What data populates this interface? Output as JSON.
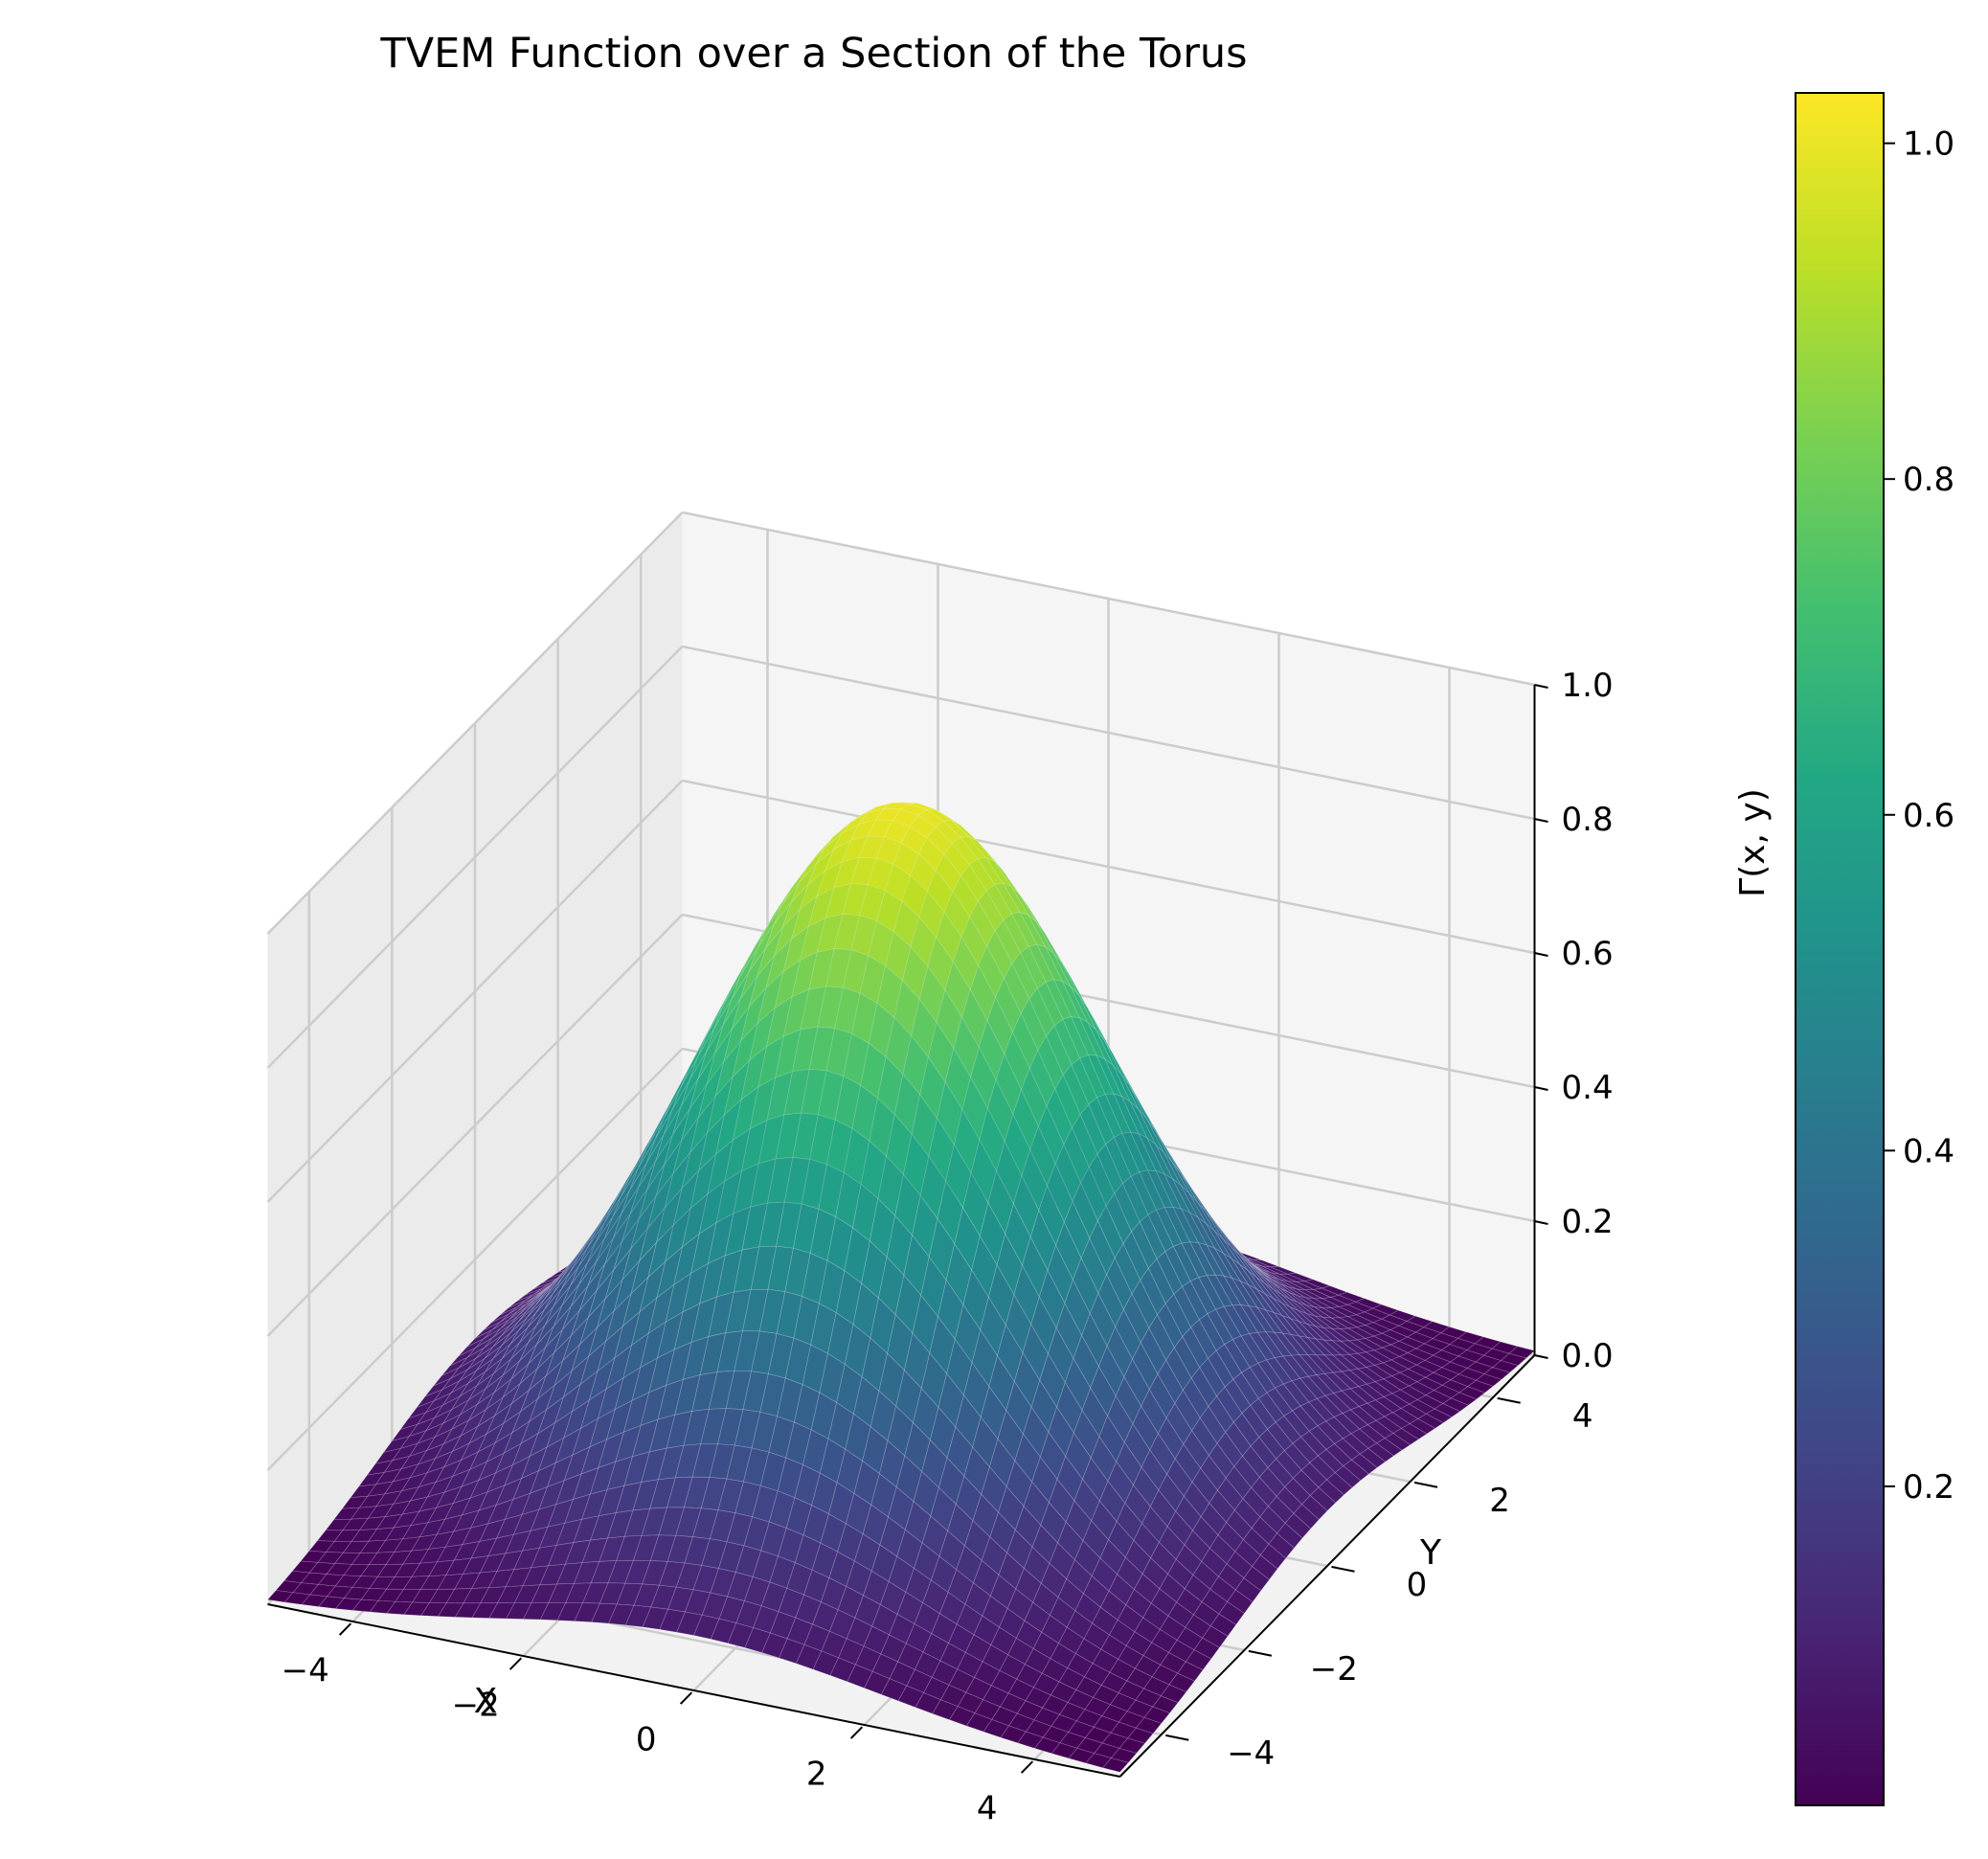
{
  "chart_data": {
    "type": "surface3d",
    "title": "TVEM Function over a Section of the Torus",
    "xlabel": "X",
    "ylabel": "Y",
    "zlabel": "Γ(x, y)",
    "xlim": [
      -5,
      5
    ],
    "ylim": [
      -5,
      5
    ],
    "zlim": [
      0,
      1
    ],
    "x_ticks": [
      "−4",
      "−2",
      "0",
      "2",
      "4"
    ],
    "y_ticks": [
      "−4",
      "−2",
      "0",
      "2",
      "4"
    ],
    "z_ticks": [
      "0.0",
      "0.2",
      "0.4",
      "0.6",
      "0.8",
      "1.0"
    ],
    "colorbar": {
      "colormap": "viridis",
      "range": [
        0.01,
        1.03
      ],
      "ticks": [
        "0.2",
        "0.4",
        "0.6",
        "0.8",
        "1.0"
      ]
    },
    "surface": {
      "function": "exp(-(x^2 + y^2)/10)",
      "x_range": [
        -5,
        5
      ],
      "y_range": [
        -5,
        5
      ],
      "grid": 50,
      "peak": {
        "x": 0,
        "y": 0,
        "z": 1.0
      }
    },
    "grid": true
  }
}
